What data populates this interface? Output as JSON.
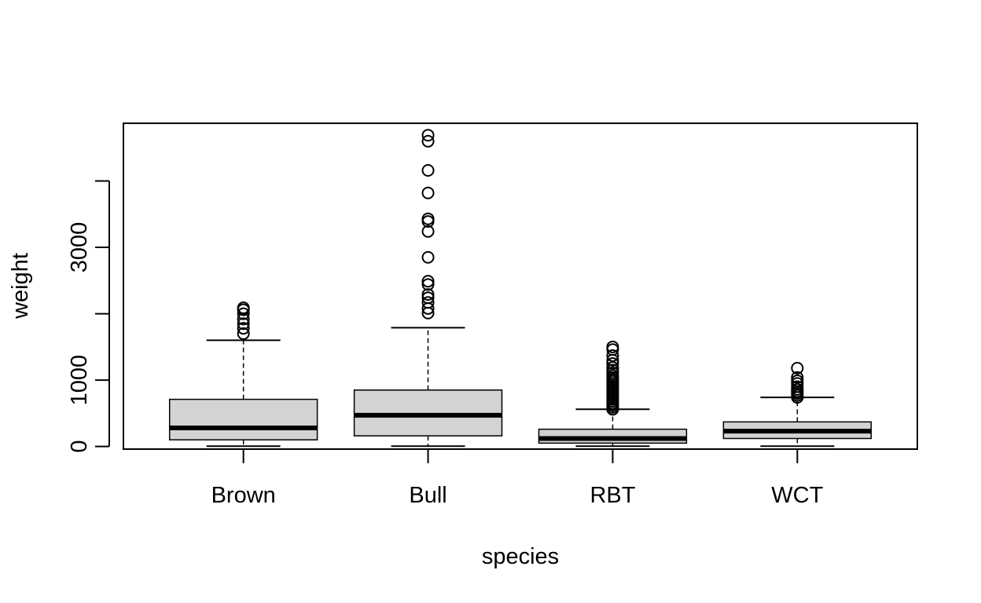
{
  "chart_data": {
    "type": "boxplot",
    "title": "",
    "xlabel": "species",
    "ylabel": "weight",
    "ylim": [
      -40,
      4870
    ],
    "y_ticks": [
      0,
      1000,
      3000
    ],
    "y_tick_labels": [
      "0",
      "1000",
      "3000"
    ],
    "y_tick_marks_only": [
      2000,
      4000
    ],
    "grid": false,
    "legend": "none",
    "box_fill": "#d3d3d3",
    "line_color": "#000000",
    "categories": [
      "Brown",
      "Bull",
      "RBT",
      "WCT"
    ],
    "boxes": [
      {
        "category": "Brown",
        "whisker_low": 5,
        "q1": 100,
        "median": 280,
        "q3": 710,
        "whisker_high": 1600,
        "outliers": [
          1700,
          1780,
          1850,
          1920,
          2000,
          2060,
          2090
        ]
      },
      {
        "category": "Bull",
        "whisker_low": 5,
        "q1": 160,
        "median": 470,
        "q3": 850,
        "whisker_high": 1790,
        "outliers": [
          2010,
          2080,
          2170,
          2240,
          2290,
          2440,
          2490,
          2850,
          3240,
          3390,
          3430,
          3820,
          4160,
          4600,
          4690
        ]
      },
      {
        "category": "RBT",
        "whisker_low": 5,
        "q1": 50,
        "median": 120,
        "q3": 260,
        "whisker_high": 560,
        "outliers": [
          560,
          590,
          620,
          650,
          680,
          710,
          740,
          770,
          800,
          830,
          860,
          890,
          920,
          950,
          980,
          1010,
          1040,
          1070,
          1110,
          1150,
          1190,
          1250,
          1300,
          1370,
          1460,
          1500
        ]
      },
      {
        "category": "WCT",
        "whisker_low": 5,
        "q1": 120,
        "median": 230,
        "q3": 370,
        "whisker_high": 740,
        "outliers": [
          740,
          770,
          800,
          830,
          860,
          900,
          950,
          990,
          1040,
          1180
        ]
      }
    ]
  }
}
